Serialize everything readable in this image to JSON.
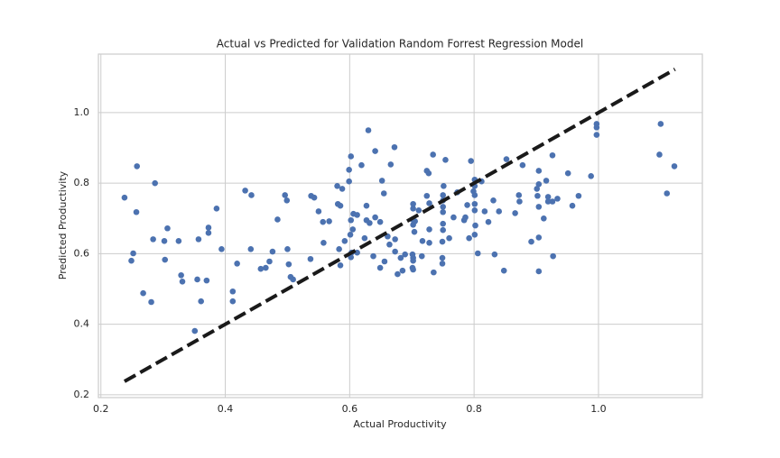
{
  "chart_data": {
    "type": "scatter",
    "title": "Actual vs Predicted for Validation Random Forrest Regression Model",
    "x_label": "Actual Productivity",
    "y_label": "Predicted Productivity",
    "grid": true,
    "xlim": [
      0.196,
      1.167
    ],
    "ylim": [
      0.192,
      1.166
    ],
    "xticks": [
      0.2,
      0.4,
      0.6,
      0.8,
      {
        "value": 1,
        "label": "1.0"
      }
    ],
    "yticks": [
      0.2,
      0.4,
      0.6,
      0.8,
      {
        "value": 1,
        "label": "1.0"
      }
    ],
    "reference_line": {
      "x": [
        0.238,
        1.123
      ],
      "y": [
        0.238,
        1.123
      ],
      "color": "#1a1a1a",
      "style": "dashed"
    },
    "series": [
      {
        "color": "#4c72b0",
        "x": [
          0.238,
          0.258,
          0.257,
          0.252,
          0.249,
          0.287,
          0.284,
          0.268,
          0.281,
          0.307,
          0.302,
          0.303,
          0.325,
          0.329,
          0.331,
          0.357,
          0.355,
          0.361,
          0.37,
          0.373,
          0.373,
          0.386,
          0.394,
          0.351,
          0.412,
          0.412,
          0.419,
          0.432,
          0.442,
          0.441,
          0.457,
          0.465,
          0.471,
          0.476,
          0.484,
          0.496,
          0.499,
          0.5,
          0.502,
          0.505,
          0.509,
          0.537,
          0.538,
          0.543,
          0.55,
          0.557,
          0.558,
          0.567,
          0.58,
          0.581,
          0.585,
          0.583,
          0.585,
          0.588,
          0.592,
          0.599,
          0.599,
          0.602,
          0.602,
          0.601,
          0.605,
          0.603,
          0.606,
          0.602,
          0.612,
          0.612,
          0.619,
          0.624,
          0.627,
          0.627,
          0.632,
          0.63,
          0.638,
          0.641,
          0.641,
          0.649,
          0.649,
          0.652,
          0.655,
          0.656,
          0.661,
          0.664,
          0.666,
          0.672,
          0.673,
          0.673,
          0.677,
          0.682,
          0.685,
          0.689,
          0.701,
          0.701,
          0.702,
          0.702,
          0.702,
          0.702,
          0.702,
          0.701,
          0.702,
          0.705,
          0.704,
          0.711,
          0.716,
          0.717,
          0.724,
          0.724,
          0.727,
          0.728,
          0.728,
          0.728,
          0.734,
          0.735,
          0.749,
          0.749,
          0.749,
          0.75,
          0.75,
          0.75,
          0.75,
          0.75,
          0.75,
          0.751,
          0.754,
          0.76,
          0.767,
          0.773,
          0.784,
          0.786,
          0.789,
          0.792,
          0.795,
          0.799,
          0.801,
          0.801,
          0.801,
          0.801,
          0.801,
          0.801,
          0.802,
          0.806,
          0.812,
          0.817,
          0.823,
          0.831,
          0.833,
          0.84,
          0.848,
          0.852,
          0.866,
          0.872,
          0.873,
          0.878,
          0.892,
          0.901,
          0.904,
          0.904,
          0.902,
          0.904,
          0.904,
          0.904,
          0.912,
          0.916,
          0.919,
          0.919,
          0.926,
          0.926,
          0.927,
          0.934,
          0.951,
          0.958,
          0.968,
          0.988,
          0.997,
          0.997,
          0.997,
          1.1,
          1.098,
          1.11,
          1.122
        ],
        "y": [
          0.759,
          0.848,
          0.718,
          0.601,
          0.58,
          0.8,
          0.641,
          0.488,
          0.463,
          0.672,
          0.636,
          0.583,
          0.636,
          0.539,
          0.521,
          0.641,
          0.527,
          0.465,
          0.524,
          0.674,
          0.659,
          0.728,
          0.613,
          0.381,
          0.493,
          0.465,
          0.572,
          0.779,
          0.766,
          0.613,
          0.557,
          0.56,
          0.578,
          0.606,
          0.697,
          0.766,
          0.751,
          0.613,
          0.57,
          0.534,
          0.527,
          0.585,
          0.764,
          0.759,
          0.72,
          0.69,
          0.631,
          0.692,
          0.792,
          0.741,
          0.736,
          0.613,
          0.567,
          0.784,
          0.636,
          0.805,
          0.838,
          0.876,
          0.695,
          0.654,
          0.669,
          0.603,
          0.713,
          0.59,
          0.71,
          0.603,
          0.851,
          0.644,
          0.736,
          0.695,
          0.687,
          0.95,
          0.593,
          0.703,
          0.891,
          0.69,
          0.56,
          0.807,
          0.771,
          0.578,
          0.649,
          0.626,
          0.853,
          0.902,
          0.641,
          0.606,
          0.542,
          0.588,
          0.552,
          0.598,
          0.598,
          0.697,
          0.741,
          0.728,
          0.588,
          0.58,
          0.555,
          0.56,
          0.682,
          0.692,
          0.662,
          0.723,
          0.593,
          0.636,
          0.764,
          0.835,
          0.828,
          0.669,
          0.743,
          0.631,
          0.881,
          0.547,
          0.572,
          0.588,
          0.634,
          0.667,
          0.685,
          0.718,
          0.733,
          0.751,
          0.766,
          0.792,
          0.866,
          0.644,
          0.703,
          0.774,
          0.695,
          0.703,
          0.738,
          0.644,
          0.863,
          0.777,
          0.81,
          0.792,
          0.766,
          0.741,
          0.723,
          0.654,
          0.68,
          0.601,
          0.805,
          0.72,
          0.69,
          0.751,
          0.598,
          0.72,
          0.552,
          0.868,
          0.715,
          0.766,
          0.748,
          0.851,
          0.634,
          0.784,
          0.835,
          0.797,
          0.764,
          0.733,
          0.646,
          0.55,
          0.7,
          0.807,
          0.761,
          0.748,
          0.748,
          0.879,
          0.593,
          0.756,
          0.828,
          0.736,
          0.764,
          0.82,
          0.968,
          0.958,
          0.937,
          0.968,
          0.881,
          0.771,
          0.848
        ]
      }
    ]
  }
}
